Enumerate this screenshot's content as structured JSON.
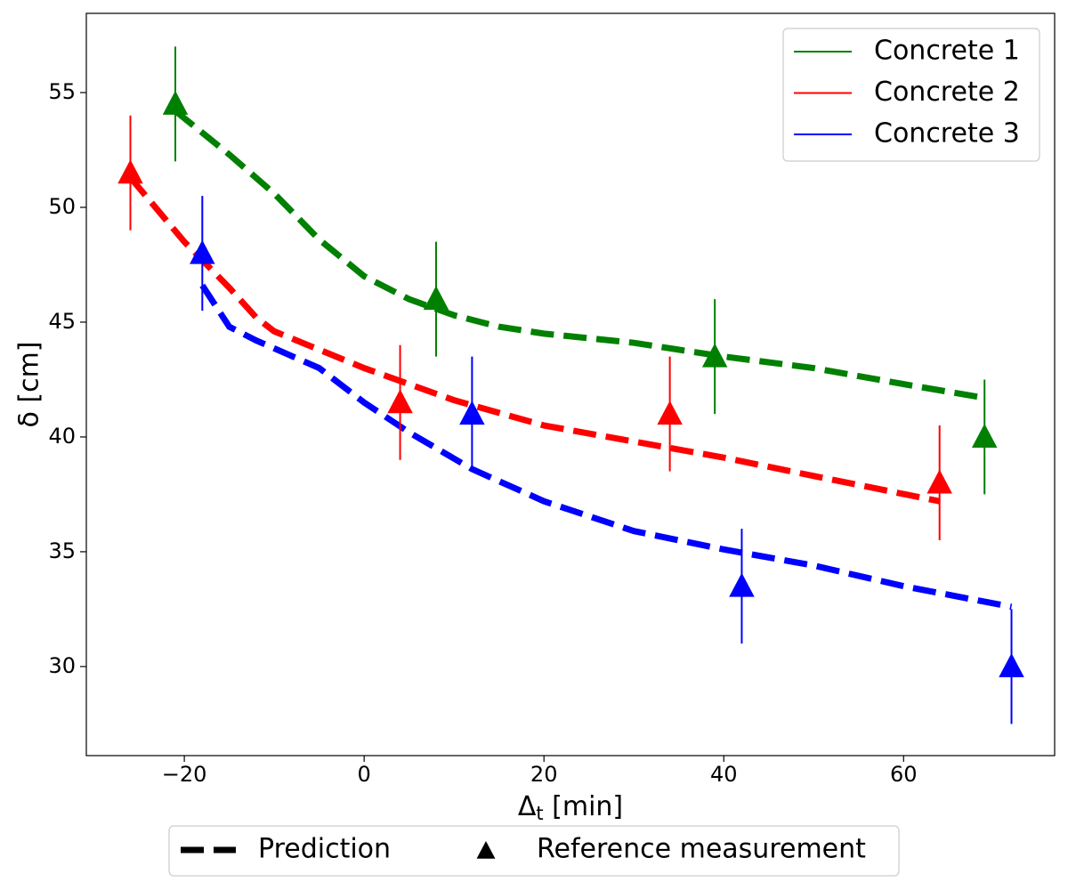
{
  "chart_data": {
    "type": "line-errorbar",
    "x_label": {
      "main": "Δ",
      "sub": "t",
      "rest": " [min]"
    },
    "y_label": "δ [cm]",
    "xlim": [
      -30.9,
      76.8
    ],
    "ylim": [
      26.12,
      58.45
    ],
    "xticks": [
      {
        "value": -20,
        "label": "−20"
      },
      0,
      20,
      40,
      60
    ],
    "yticks": [
      30,
      35,
      40,
      45,
      50,
      55
    ],
    "legend": "upper right",
    "bottom_legend": [
      "Prediction",
      "Reference measurement"
    ],
    "series": [
      {
        "name": "Concrete 1",
        "color": "#008000",
        "x": [
          -21,
          8,
          39,
          69
        ],
        "values": [
          54.5,
          46,
          43.5,
          40
        ],
        "errors": [
          2.5,
          2.5,
          2.5,
          2.5
        ],
        "pred_x": [
          -21,
          -15,
          -10,
          -5,
          0,
          5,
          10,
          15,
          20,
          30,
          40,
          50,
          60,
          69
        ],
        "pred_values": [
          54.2,
          52.3,
          50.6,
          48.6,
          47.0,
          46.0,
          45.3,
          44.8,
          44.5,
          44.1,
          43.5,
          43.0,
          42.3,
          41.7
        ]
      },
      {
        "name": "Concrete 2",
        "color": "#ff0000",
        "x": [
          -26,
          4,
          34,
          64
        ],
        "values": [
          51.5,
          41.5,
          41,
          38
        ],
        "errors": [
          2.5,
          2.5,
          2.5,
          2.5
        ],
        "pred_x": [
          -26,
          -20,
          -15,
          -12,
          -10,
          -5,
          0,
          5,
          10,
          20,
          30,
          40,
          50,
          64
        ],
        "pred_values": [
          51.3,
          48.5,
          46.5,
          45.2,
          44.6,
          43.8,
          43.0,
          42.3,
          41.6,
          40.5,
          39.8,
          39.1,
          38.3,
          37.2
        ]
      },
      {
        "name": "Concrete 3",
        "color": "#0000ff",
        "x": [
          -18,
          12,
          42,
          72
        ],
        "values": [
          48,
          41,
          33.5,
          30
        ],
        "errors": [
          2.5,
          2.5,
          2.5,
          2.5
        ],
        "pred_x": [
          -18,
          -15,
          -12,
          -5,
          0,
          5,
          12,
          20,
          30,
          40,
          50,
          60,
          72
        ],
        "pred_values": [
          46.6,
          44.8,
          44.2,
          43.0,
          41.5,
          40.2,
          38.6,
          37.2,
          35.9,
          35.1,
          34.4,
          33.5,
          32.6
        ]
      }
    ]
  }
}
